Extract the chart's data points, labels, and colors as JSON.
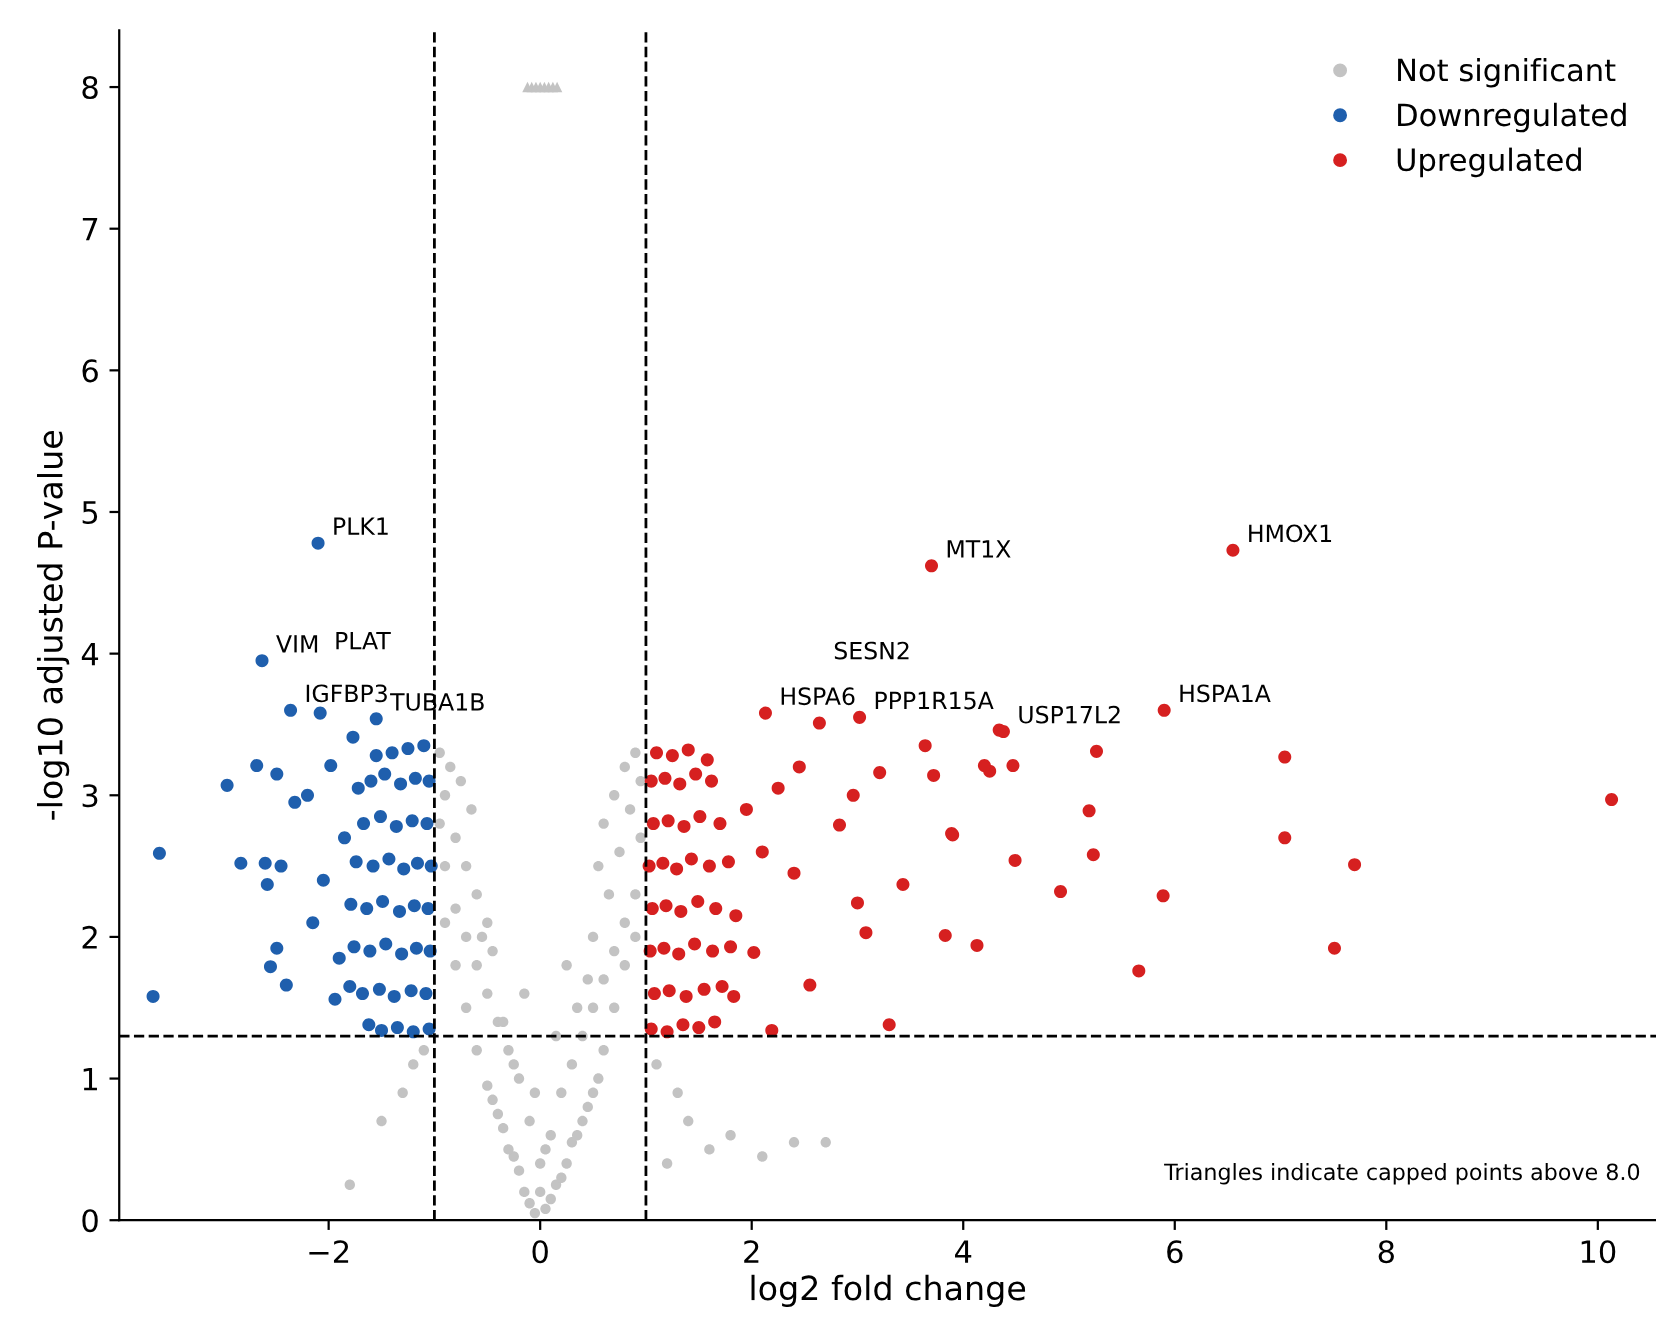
{
  "chart_data": {
    "type": "scatter",
    "xlabel": "log2 fold change",
    "ylabel": "-log10 adjusted P-value",
    "xlim": [
      -3.98,
      10.55
    ],
    "ylim": [
      0,
      8.4
    ],
    "xticks": [
      {
        "value": -2,
        "label": "−2"
      },
      0,
      2,
      4,
      6,
      8,
      10
    ],
    "yticks": [
      0,
      1,
      2,
      3,
      4,
      5,
      6,
      7,
      8
    ],
    "grid": false,
    "legend": "top right",
    "marker": "circle",
    "ref_lines": [
      {
        "axis": "x",
        "value": -1,
        "line_style": "dashed",
        "color": "#000000"
      },
      {
        "axis": "x",
        "value": 1,
        "line_style": "dashed",
        "color": "#000000"
      },
      {
        "axis": "y",
        "value": 1.3,
        "line_style": "dashed",
        "color": "#000000"
      }
    ],
    "series": [
      {
        "name": "Not significant",
        "color": "#c3c3c3",
        "x": [
          -0.05,
          0.05,
          0.1,
          -0.1,
          0.15,
          -0.15,
          0.2,
          -0.2,
          0.25,
          -0.25,
          0.3,
          -0.3,
          0.35,
          -0.35,
          0.4,
          -0.4,
          0.45,
          -0.45,
          0.5,
          -0.5,
          0.0,
          0.1,
          -0.1,
          0.2,
          -0.2,
          0.3,
          -0.3,
          0.4,
          -0.4,
          0.5,
          -0.5,
          0.6,
          -0.6,
          0.7,
          -0.7,
          0.8,
          -0.8,
          0.9,
          -0.9,
          0.95,
          -0.95,
          -0.6,
          -0.7,
          -0.8,
          -0.9,
          -0.65,
          -0.75,
          -0.85,
          -0.95,
          -0.55,
          -0.6,
          -0.7,
          -0.8,
          -0.9,
          0.6,
          0.7,
          0.8,
          0.9,
          0.5,
          0.65,
          0.75,
          0.85,
          0.95,
          0.55,
          0.6,
          0.7,
          0.8,
          0.9,
          0.45,
          0.55,
          -0.45,
          -0.5,
          0.0,
          0.05,
          -0.05,
          0.15,
          -0.15,
          0.25,
          -0.25,
          -1.1,
          -1.3,
          -1.5,
          -1.2,
          -1.8,
          1.1,
          1.3,
          1.6,
          1.8,
          2.1,
          2.4,
          2.7,
          1.4,
          1.2,
          -0.35,
          0.35
        ],
        "values": [
          0.05,
          0.08,
          0.15,
          0.12,
          0.25,
          0.2,
          0.3,
          0.35,
          0.4,
          0.45,
          0.55,
          0.5,
          0.6,
          0.65,
          0.7,
          0.75,
          0.8,
          0.85,
          0.9,
          0.95,
          0.4,
          0.6,
          0.7,
          0.9,
          1.0,
          1.1,
          1.2,
          1.3,
          1.4,
          1.5,
          1.6,
          1.7,
          1.8,
          1.9,
          2.0,
          2.1,
          2.2,
          2.3,
          2.5,
          2.7,
          2.8,
          2.3,
          2.5,
          2.7,
          3.0,
          2.9,
          3.1,
          3.2,
          3.3,
          2.0,
          1.2,
          1.5,
          1.8,
          2.1,
          1.2,
          1.5,
          1.8,
          2.0,
          2.0,
          2.3,
          2.6,
          2.9,
          3.1,
          2.5,
          2.8,
          3.0,
          3.2,
          3.3,
          1.7,
          1.0,
          1.9,
          2.1,
          0.2,
          0.5,
          0.9,
          1.3,
          1.6,
          1.8,
          1.1,
          1.2,
          0.9,
          0.7,
          1.1,
          0.25,
          1.1,
          0.9,
          0.5,
          0.6,
          0.45,
          0.55,
          0.55,
          0.7,
          0.4,
          1.4,
          1.5
        ]
      },
      {
        "color": "#c3c3c3",
        "marker": "triangle",
        "x": [
          -0.12,
          -0.08,
          -0.04,
          0.0,
          0.04,
          0.08,
          0.12,
          0.16
        ],
        "values": [
          8,
          8,
          8,
          8,
          8,
          8,
          8,
          8
        ]
      },
      {
        "name": "Downregulated",
        "color": "#1f5fad",
        "x": [
          -2.1,
          -2.63,
          -2.36,
          -2.08,
          -1.55,
          -1.77,
          -3.6,
          -3.66,
          -2.96,
          -2.68,
          -2.83,
          -2.6,
          -2.58,
          -2.45,
          -2.55,
          -2.4,
          -2.49,
          -2.49,
          -2.2,
          -1.98,
          -2.32,
          -1.94,
          -1.05,
          -1.2,
          -1.35,
          -1.5,
          -1.62,
          -1.08,
          -1.22,
          -1.38,
          -1.52,
          -1.68,
          -1.8,
          -1.04,
          -1.17,
          -1.31,
          -1.46,
          -1.61,
          -1.76,
          -1.9,
          -1.06,
          -1.19,
          -1.33,
          -1.49,
          -1.64,
          -1.79,
          -1.03,
          -1.16,
          -1.29,
          -1.43,
          -1.58,
          -1.74,
          -1.07,
          -1.21,
          -1.36,
          -1.51,
          -1.67,
          -1.05,
          -1.18,
          -1.32,
          -1.47,
          -1.6,
          -1.72,
          -1.1,
          -1.25,
          -1.4,
          -1.55,
          -1.85,
          -2.05,
          -2.15
        ],
        "values": [
          4.78,
          3.95,
          3.6,
          3.58,
          3.54,
          3.41,
          2.59,
          1.58,
          3.07,
          3.21,
          2.52,
          2.52,
          2.37,
          2.5,
          1.79,
          1.66,
          1.92,
          3.15,
          3.0,
          3.21,
          2.95,
          1.56,
          1.35,
          1.33,
          1.36,
          1.34,
          1.38,
          1.6,
          1.62,
          1.58,
          1.63,
          1.6,
          1.65,
          1.9,
          1.92,
          1.88,
          1.95,
          1.9,
          1.93,
          1.85,
          2.2,
          2.22,
          2.18,
          2.25,
          2.2,
          2.23,
          2.5,
          2.52,
          2.48,
          2.55,
          2.5,
          2.53,
          2.8,
          2.82,
          2.78,
          2.85,
          2.8,
          3.1,
          3.12,
          3.08,
          3.15,
          3.1,
          3.05,
          3.35,
          3.33,
          3.3,
          3.28,
          2.7,
          2.4,
          2.1
        ]
      },
      {
        "name": "Upregulated",
        "color": "#d62020",
        "x": [
          3.7,
          6.55,
          5.9,
          4.38,
          5.26,
          7.04,
          7.04,
          4.25,
          4.47,
          5.19,
          5.23,
          3.9,
          4.49,
          10.13,
          7.7,
          7.51,
          5.66,
          5.89,
          4.92,
          4.13,
          3.83,
          3.89,
          3.3,
          2.19,
          3.43,
          3.08,
          3.0,
          2.55,
          1.83,
          2.13,
          3.02,
          2.64,
          3.64,
          3.72,
          4.2,
          4.34,
          3.21,
          2.83,
          2.96,
          2.4,
          2.02,
          1.05,
          1.2,
          1.35,
          1.5,
          1.65,
          1.08,
          1.22,
          1.38,
          1.55,
          1.72,
          1.04,
          1.17,
          1.31,
          1.46,
          1.63,
          1.8,
          1.06,
          1.19,
          1.33,
          1.49,
          1.66,
          1.85,
          1.03,
          1.16,
          1.29,
          1.43,
          1.6,
          1.78,
          2.1,
          1.07,
          1.21,
          1.36,
          1.51,
          1.7,
          1.95,
          1.05,
          1.18,
          1.32,
          1.47,
          1.62,
          1.1,
          1.25,
          1.4,
          1.58,
          2.25,
          2.45
        ],
        "values": [
          4.62,
          4.73,
          3.6,
          3.45,
          3.31,
          3.27,
          2.7,
          3.17,
          3.21,
          2.89,
          2.58,
          2.72,
          2.54,
          2.97,
          2.51,
          1.92,
          1.76,
          2.29,
          2.32,
          1.94,
          2.01,
          2.73,
          1.38,
          1.34,
          2.37,
          2.03,
          2.24,
          1.66,
          1.58,
          3.58,
          3.55,
          3.51,
          3.35,
          3.14,
          3.21,
          3.46,
          3.16,
          2.79,
          3.0,
          2.45,
          1.89,
          1.35,
          1.33,
          1.38,
          1.36,
          1.4,
          1.6,
          1.62,
          1.58,
          1.63,
          1.65,
          1.9,
          1.92,
          1.88,
          1.95,
          1.9,
          1.93,
          2.2,
          2.22,
          2.18,
          2.25,
          2.2,
          2.15,
          2.5,
          2.52,
          2.48,
          2.55,
          2.5,
          2.53,
          2.6,
          2.8,
          2.82,
          2.78,
          2.85,
          2.8,
          2.9,
          3.1,
          3.12,
          3.08,
          3.15,
          3.1,
          3.3,
          3.28,
          3.32,
          3.25,
          3.05,
          3.2
        ]
      }
    ],
    "annotations": [
      {
        "text": "PLK1",
        "x": -2.1,
        "y": 4.78
      },
      {
        "text": "VIM",
        "x": -2.63,
        "y": 3.95
      },
      {
        "text": "IGFBP3",
        "x": -2.36,
        "y": 3.6
      },
      {
        "text": "PLAT",
        "x": -2.08,
        "y": 3.58
      },
      {
        "text": "TUBA1B",
        "x": -1.55,
        "y": 3.54
      },
      {
        "text": "MT1X",
        "x": 3.7,
        "y": 4.62
      },
      {
        "text": "HMOX1",
        "x": 6.55,
        "y": 4.73
      },
      {
        "text": "HSPA1A",
        "x": 5.9,
        "y": 3.6
      },
      {
        "text": "USP17L2",
        "x": 4.38,
        "y": 3.45
      },
      {
        "text": "HSPA6",
        "x": 2.13,
        "y": 3.58
      },
      {
        "text": "SESN2",
        "x": 2.64,
        "y": 3.51
      },
      {
        "text": "PPP1R15A",
        "x": 3.02,
        "y": 3.55
      },
      "Triangles indicate capped points above 8.0"
    ]
  }
}
